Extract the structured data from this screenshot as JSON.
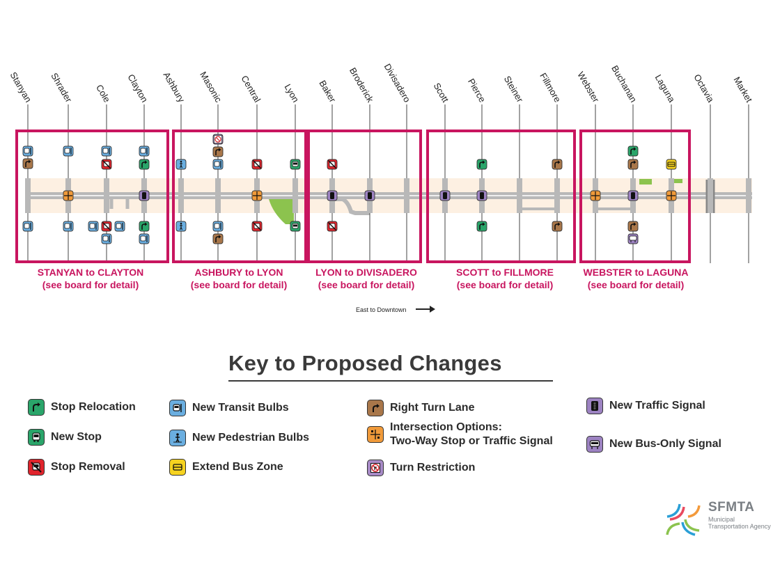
{
  "colors": {
    "segment_box": "#c8155f",
    "stop_relocation": "#2aa56a",
    "new_stop": "#2aa56a",
    "stop_removal": "#e0242c",
    "new_transit_bulbs": "#6aaee0",
    "new_pedestrian_bulbs": "#6aaee0",
    "extend_bus_zone": "#f6d320",
    "right_turn_lane": "#a9774a",
    "intersection_options": "#f09a3a",
    "turn_restriction": "#a78ac6",
    "new_traffic_signal": "#9d83c2",
    "new_bus_only_signal": "#9d83c2",
    "street_fill": "#fdf0e2",
    "road": "#b8b8b8",
    "park": "#8cc34e"
  },
  "streets": [
    "Stanyan",
    "Shrader",
    "Cole",
    "Clayton",
    "Ashbury",
    "Masonic",
    "Central",
    "Lyon",
    "Baker",
    "Broderick",
    "Divisadero",
    "Scott",
    "Pierce",
    "Steiner",
    "Fillmore",
    "Webster",
    "Buchanan",
    "Laguna",
    "Octavia",
    "Market"
  ],
  "segments": [
    {
      "title": "STANYAN to CLAYTON",
      "note": "(see board for detail)"
    },
    {
      "title": "ASHBURY to LYON",
      "note": "(see board for detail)"
    },
    {
      "title": "LYON to DIVISADERO",
      "note": "(see board for detail)"
    },
    {
      "title": "SCOTT to FILLMORE",
      "note": "(see board for detail)"
    },
    {
      "title": "WEBSTER to LAGUNA",
      "note": "(see board for detail)"
    }
  ],
  "direction_label": "East to Downtown",
  "key": {
    "title": "Key to Proposed Changes",
    "items": [
      {
        "id": "stop_relocation",
        "label": "Stop Relocation",
        "icon": "stop-relocation-icon"
      },
      {
        "id": "new_stop",
        "label": "New Stop",
        "icon": "new-stop-icon"
      },
      {
        "id": "stop_removal",
        "label": "Stop Removal",
        "icon": "stop-removal-icon"
      },
      {
        "id": "new_transit_bulbs",
        "label": "New Transit Bulbs",
        "icon": "transit-bulb-icon"
      },
      {
        "id": "new_pedestrian_bulbs",
        "label": "New Pedestrian Bulbs",
        "icon": "pedestrian-bulb-icon"
      },
      {
        "id": "extend_bus_zone",
        "label": "Extend Bus Zone",
        "icon": "bus-zone-icon"
      },
      {
        "id": "right_turn_lane",
        "label": "Right Turn Lane",
        "icon": "right-turn-icon"
      },
      {
        "id": "intersection_options",
        "label_line1": "Intersection Options:",
        "label_line2": "Two-Way Stop or Traffic Signal",
        "icon": "intersection-options-icon"
      },
      {
        "id": "turn_restriction",
        "label": "Turn Restriction",
        "icon": "turn-restriction-icon"
      },
      {
        "id": "new_traffic_signal",
        "label": "New Traffic Signal",
        "icon": "traffic-signal-icon"
      },
      {
        "id": "new_bus_only_signal",
        "label": "New Bus-Only Signal",
        "icon": "bus-only-signal-icon"
      }
    ]
  },
  "logo": {
    "name": "SFMTA",
    "subtitle": "Municipal Transportation Agency"
  }
}
